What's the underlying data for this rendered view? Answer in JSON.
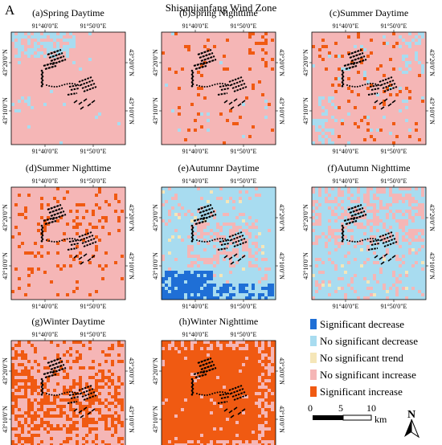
{
  "figure": {
    "panel_letter": "A",
    "title": "Shisanjianfang Wind Zone"
  },
  "axes": {
    "top_ticks": [
      "91°40'0\"E",
      "91°50'0\"E"
    ],
    "bottom_ticks": [
      "91°40'0\"E",
      "91°50'0\"E"
    ],
    "left_ticks": [
      "43°20'0\"N",
      "43°10'0\"N"
    ],
    "right_ticks": [
      "43°20'0\"N",
      "43°10'0\"N"
    ]
  },
  "panels": [
    {
      "id": "a",
      "label": "(a)Spring Daytime",
      "dominant": "no_sig_increase",
      "pattern": "spring_day"
    },
    {
      "id": "b",
      "label": "(b)Spring Nighttime",
      "dominant": "no_sig_increase",
      "pattern": "spring_night"
    },
    {
      "id": "c",
      "label": "(c)Summer Daytime",
      "dominant": "no_sig_increase",
      "pattern": "summer_day"
    },
    {
      "id": "d",
      "label": "(d)Summer Nighttime",
      "dominant": "no_sig_increase",
      "pattern": "summer_night"
    },
    {
      "id": "e",
      "label": "(e)Autumnr Daytime",
      "dominant": "no_sig_decrease",
      "pattern": "autumn_day"
    },
    {
      "id": "f",
      "label": "(f)Autumn Nighttime",
      "dominant": "no_sig_decrease",
      "pattern": "autumn_night"
    },
    {
      "id": "g",
      "label": "(g)Winter Daytime",
      "dominant": "no_sig_increase",
      "pattern": "winter_day"
    },
    {
      "id": "h",
      "label": "(h)Winter Nighttime",
      "dominant": "sig_increase",
      "pattern": "winter_night"
    }
  ],
  "legend": [
    {
      "key": "sig_decrease",
      "label": "Significant decrease",
      "color": "#1f6fd6"
    },
    {
      "key": "no_sig_decrease",
      "label": "No significant decrease",
      "color": "#a8dcf0"
    },
    {
      "key": "no_sig_trend",
      "label": "No significant trend",
      "color": "#f5e6b8"
    },
    {
      "key": "no_sig_increase",
      "label": "No significant increase",
      "color": "#f5b6b6"
    },
    {
      "key": "sig_increase",
      "label": "Significant increase",
      "color": "#f05a12"
    }
  ],
  "scale_bar": {
    "ticks": [
      "0",
      "5",
      "10"
    ],
    "unit": "km"
  },
  "north_arrow": {
    "label": "N",
    "icon": "north-arrow-icon"
  }
}
